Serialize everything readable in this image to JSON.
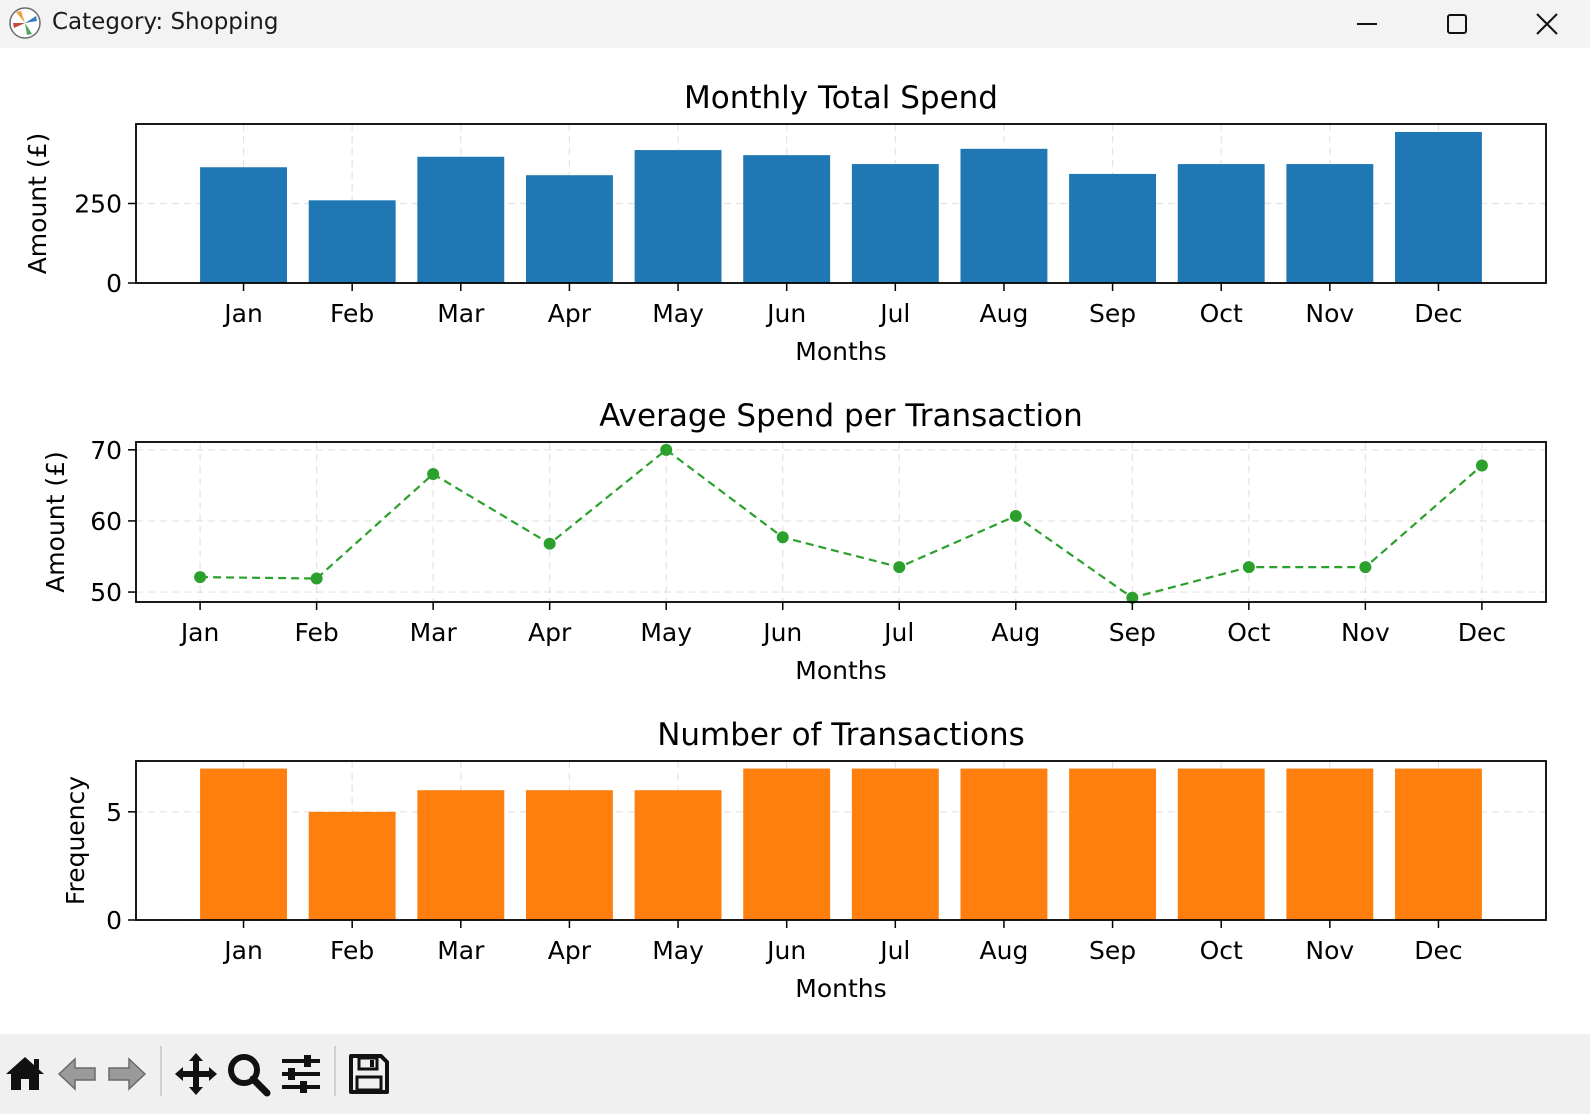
{
  "window": {
    "title": "Category: Shopping",
    "controls": [
      "minimize",
      "maximize",
      "close"
    ]
  },
  "toolbar": {
    "icons": [
      "home-icon",
      "back-icon",
      "forward-icon",
      "pan-icon",
      "zoom-icon",
      "configure-subplots-icon",
      "save-icon"
    ]
  },
  "colors": {
    "bar_spend": "#1f77b4",
    "line_avg": "#2ca02c",
    "bar_count": "#ff7f0e",
    "grid": "#b0b0b0"
  },
  "chart_data": [
    {
      "type": "bar",
      "title": "Monthly Total Spend",
      "xlabel": "Months",
      "ylabel": "Amount (£)",
      "categories": [
        "Jan",
        "Feb",
        "Mar",
        "Apr",
        "May",
        "Jun",
        "Jul",
        "Aug",
        "Sep",
        "Oct",
        "Nov",
        "Dec"
      ],
      "values": [
        364,
        260,
        397,
        339,
        418,
        402,
        374,
        422,
        343,
        374,
        374,
        475
      ],
      "yticks": [
        0,
        250
      ],
      "ylim": [
        0,
        500
      ],
      "grid": true
    },
    {
      "type": "line",
      "title": "Average Spend per Transaction",
      "xlabel": "Months",
      "ylabel": "Amount (£)",
      "categories": [
        "Jan",
        "Feb",
        "Mar",
        "Apr",
        "May",
        "Jun",
        "Jul",
        "Aug",
        "Sep",
        "Oct",
        "Nov",
        "Dec"
      ],
      "values": [
        52.1,
        51.9,
        66.6,
        56.8,
        70.0,
        57.7,
        53.5,
        60.7,
        49.2,
        53.5,
        53.5,
        67.8
      ],
      "yticks": [
        50,
        60,
        70
      ],
      "ylim": [
        48.6,
        71.1
      ],
      "line_style": "dashed",
      "marker": "circle",
      "grid": true
    },
    {
      "type": "bar",
      "title": "Number of Transactions",
      "xlabel": "Months",
      "ylabel": "Frequency",
      "categories": [
        "Jan",
        "Feb",
        "Mar",
        "Apr",
        "May",
        "Jun",
        "Jul",
        "Aug",
        "Sep",
        "Oct",
        "Nov",
        "Dec"
      ],
      "values": [
        7,
        5,
        6,
        6,
        6,
        7,
        7,
        7,
        7,
        7,
        7,
        7
      ],
      "yticks": [
        0,
        5
      ],
      "ylim": [
        0,
        7.35
      ],
      "grid": true
    }
  ]
}
